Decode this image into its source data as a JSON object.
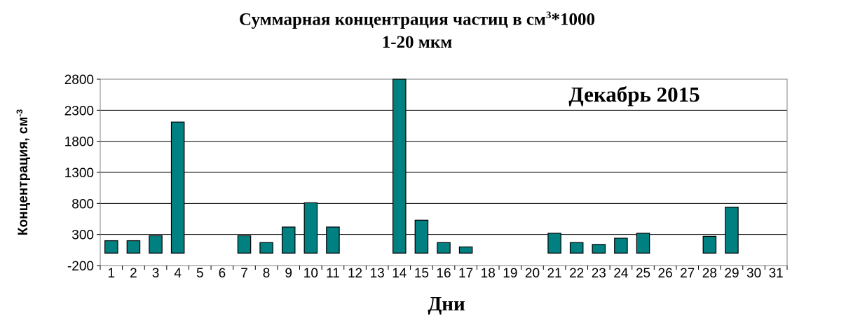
{
  "chart_data": {
    "type": "bar",
    "title_line1": "Суммарная концентрация частиц в см",
    "title_sup": "3",
    "title_line1_suffix": "*1000",
    "title_line2": "1-20 мкм",
    "annotation": "Декабрь 2015",
    "xlabel": "Дни",
    "ylabel": "Концентрация, см",
    "ylabel_sup": "-3",
    "ylim": [
      -200,
      2800
    ],
    "yticks": [
      -200,
      300,
      800,
      1300,
      1800,
      2300,
      2800
    ],
    "grid": true,
    "legend": "none",
    "bar_color": "#008080",
    "categories": [
      "1",
      "2",
      "3",
      "4",
      "5",
      "6",
      "7",
      "8",
      "9",
      "10",
      "11",
      "12",
      "13",
      "14",
      "15",
      "16",
      "17",
      "18",
      "19",
      "20",
      "21",
      "22",
      "23",
      "24",
      "25",
      "26",
      "27",
      "28",
      "29",
      "30",
      "31"
    ],
    "values": [
      200,
      200,
      280,
      2110,
      0,
      0,
      280,
      170,
      420,
      810,
      420,
      0,
      0,
      2800,
      530,
      170,
      100,
      0,
      0,
      0,
      320,
      170,
      140,
      240,
      320,
      0,
      0,
      270,
      740,
      0,
      0
    ]
  }
}
